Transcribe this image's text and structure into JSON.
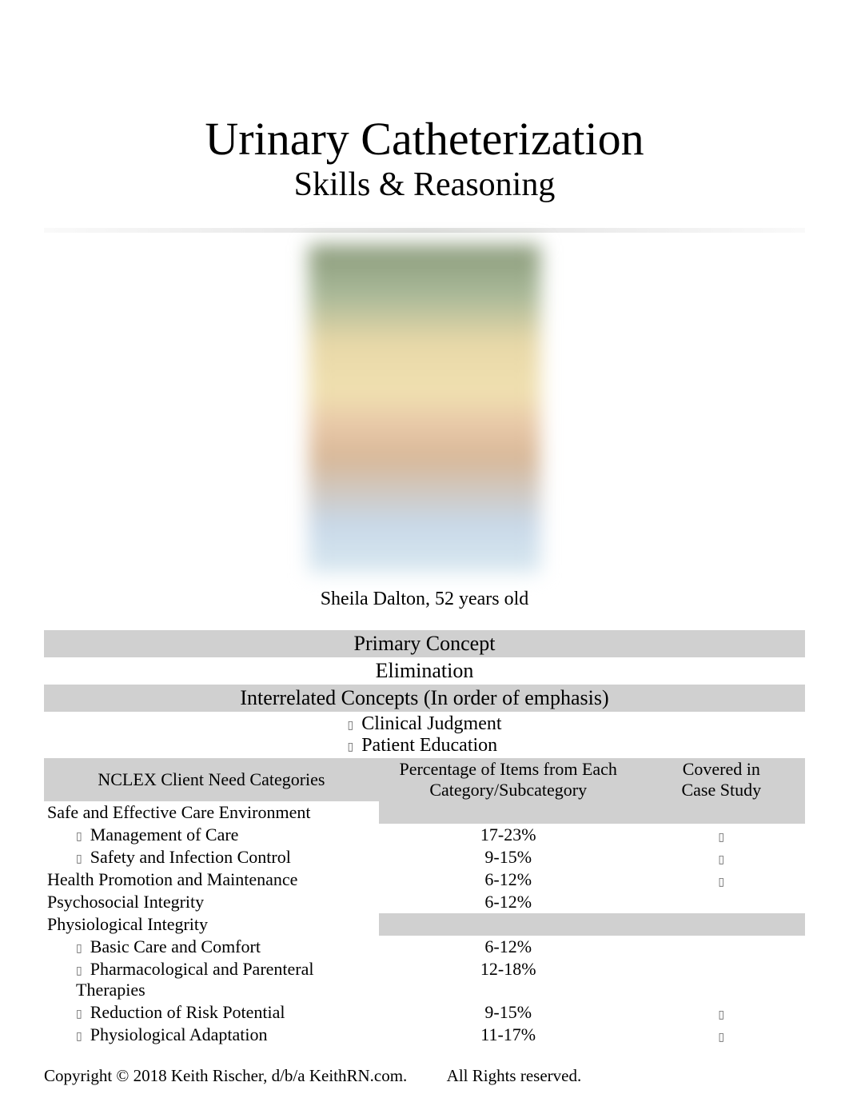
{
  "title": {
    "main": "Urinary Catheterization",
    "sub": "Skills & Reasoning"
  },
  "patient": {
    "caption": "Sheila Dalton, 52 years old"
  },
  "concepts": {
    "primary_header": "Primary Concept",
    "primary_value": "Elimination",
    "interrelated_header": "Interrelated Concepts    (In order of emphasis)",
    "interrelated_items": [
      "Clinical Judgment",
      "Patient Education"
    ]
  },
  "nclex": {
    "headers": {
      "category": "NCLEX Client Need Categories",
      "percent_line1": "Percentage of Items from Each",
      "percent_line2": "Category/Subcategory",
      "covered_line1": "Covered in",
      "covered_line2": "Case Study"
    },
    "rows": [
      {
        "label": "Safe and Effective Care Environment",
        "percent": "",
        "covered": "",
        "indent": 0,
        "bg": "white",
        "percent_bg": "gray",
        "covered_bg": "gray"
      },
      {
        "label": "Management of Care",
        "percent": "17-23%",
        "covered": "✓",
        "indent": 1,
        "bg": "white",
        "percent_bg": "white",
        "covered_bg": "white"
      },
      {
        "label": "Safety and Infection Control",
        "percent": "9-15%",
        "covered": "✓",
        "indent": 1,
        "bg": "white",
        "percent_bg": "white",
        "covered_bg": "white"
      },
      {
        "label": "Health Promotion and Maintenance",
        "percent": "6-12%",
        "covered": "✓",
        "indent": 0,
        "bg": "white",
        "percent_bg": "white",
        "covered_bg": "white"
      },
      {
        "label": "Psychosocial Integrity",
        "percent": "6-12%",
        "covered": "",
        "indent": 0,
        "bg": "white",
        "percent_bg": "white",
        "covered_bg": "white"
      },
      {
        "label": "Physiological Integrity",
        "percent": "",
        "covered": "",
        "indent": 0,
        "bg": "white",
        "percent_bg": "gray",
        "covered_bg": "gray"
      },
      {
        "label": "Basic Care and Comfort",
        "percent": "6-12%",
        "covered": "",
        "indent": 1,
        "bg": "white",
        "percent_bg": "white",
        "covered_bg": "white"
      },
      {
        "label": "Pharmacological and Parenteral Therapies",
        "percent": "12-18%",
        "covered": "",
        "indent": 1,
        "bg": "white",
        "percent_bg": "white",
        "covered_bg": "white"
      },
      {
        "label": "Reduction of Risk Potential",
        "percent": "9-15%",
        "covered": "✓",
        "indent": 1,
        "bg": "white",
        "percent_bg": "white",
        "covered_bg": "white"
      },
      {
        "label": "Physiological Adaptation",
        "percent": "11-17%",
        "covered": "✓",
        "indent": 1,
        "bg": "white",
        "percent_bg": "white",
        "covered_bg": "white"
      }
    ]
  },
  "footer": {
    "copyright": "Copyright © 2018 Keith Rischer, d/b/a KeithRN.com.",
    "rights": "All Rights reserved."
  },
  "colors": {
    "gray_bg": "#d0d0d0",
    "white_bg": "#ffffff",
    "text": "#000000"
  }
}
